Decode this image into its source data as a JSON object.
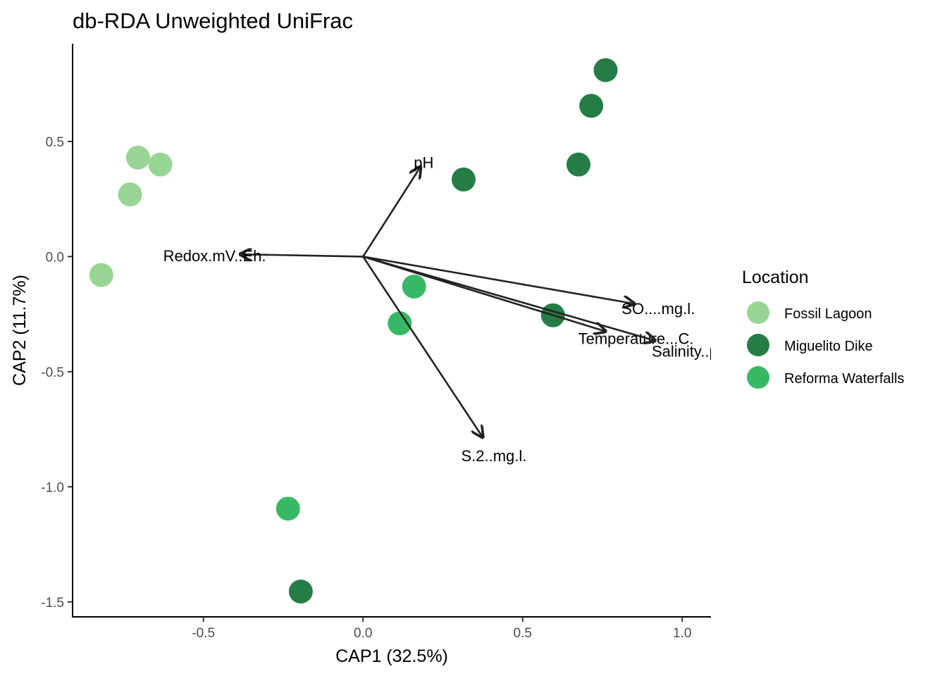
{
  "chart_data": {
    "type": "scatter",
    "title": "db-RDA Unweighted UniFrac",
    "xlabel": "CAP1 (32.5%)",
    "ylabel": "CAP2 (11.7%)",
    "xlim": [
      -0.91,
      1.09
    ],
    "ylim": [
      -1.565,
      0.925
    ],
    "x_ticks": [
      -0.5,
      0.0,
      0.5,
      1.0
    ],
    "x_tick_labels": [
      "-0.5",
      "0.0",
      "0.5",
      "1.0"
    ],
    "y_ticks": [
      -1.5,
      -1.0,
      -0.5,
      0.0,
      0.5
    ],
    "y_tick_labels": [
      "-1.5",
      "-1.0",
      "-0.5",
      "0.0",
      "0.5"
    ],
    "grid": false,
    "legend": {
      "title": "Location",
      "position": "right",
      "entries": [
        "Fossil Lagoon",
        "Miguelito Dike",
        "Reforma Waterfalls"
      ]
    },
    "series": [
      {
        "name": "Fossil Lagoon",
        "color": "#98d594",
        "points": [
          {
            "x": -0.705,
            "y": 0.43
          },
          {
            "x": -0.635,
            "y": 0.4
          },
          {
            "x": -0.73,
            "y": 0.27
          },
          {
            "x": -0.82,
            "y": -0.08
          }
        ]
      },
      {
        "name": "Miguelito Dike",
        "color": "#267c45",
        "points": [
          {
            "x": 0.76,
            "y": 0.81
          },
          {
            "x": 0.715,
            "y": 0.655
          },
          {
            "x": 0.675,
            "y": 0.4
          },
          {
            "x": 0.315,
            "y": 0.335
          },
          {
            "x": 0.595,
            "y": -0.255
          },
          {
            "x": -0.195,
            "y": -1.455
          }
        ]
      },
      {
        "name": "Reforma Waterfalls",
        "color": "#37b865",
        "points": [
          {
            "x": 0.16,
            "y": -0.13
          },
          {
            "x": 0.115,
            "y": -0.29
          },
          {
            "x": -0.235,
            "y": -1.095
          }
        ]
      }
    ],
    "vectors": [
      {
        "label": "pH",
        "x": 0.18,
        "y": 0.39,
        "label_x": 0.19,
        "label_y": 0.41
      },
      {
        "label": "Redox.mV..Eh.",
        "x": -0.385,
        "y": 0.01,
        "label_x": -0.465,
        "label_y": 0.005
      },
      {
        "label": "SO....mg.l.",
        "x": 0.85,
        "y": -0.205,
        "label_x": 0.925,
        "label_y": -0.225
      },
      {
        "label": "Temperature...C.",
        "x": 0.76,
        "y": -0.325,
        "label_x": 0.855,
        "label_y": -0.355
      },
      {
        "label": "Salinity..ppt.",
        "x": 0.915,
        "y": -0.365,
        "label_x": 1.035,
        "label_y": -0.41
      },
      {
        "label": "S.2..mg.l.",
        "x": 0.375,
        "y": -0.785,
        "label_x": 0.41,
        "label_y": -0.865
      }
    ]
  }
}
